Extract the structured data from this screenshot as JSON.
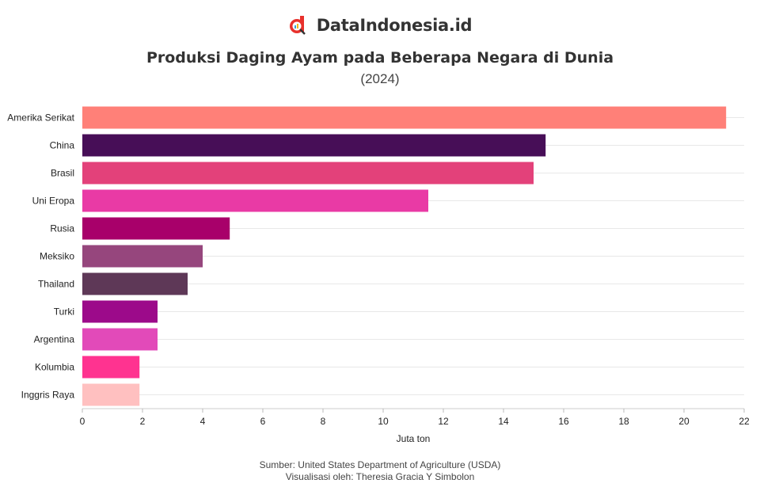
{
  "brand": {
    "logo_text": "DataIndonesia.id",
    "logo_color": "#e8312c"
  },
  "header": {
    "title": "Produksi Daging Ayam pada Beberapa Negara di Dunia",
    "subtitle": "(2024)"
  },
  "footer": {
    "source": "Sumber: United States Department of Agriculture (USDA)",
    "credit": "Visualisasi oleh: Theresia Gracia Y Simbolon"
  },
  "chart_data": {
    "type": "bar",
    "orientation": "horizontal",
    "categories": [
      "Amerika Serikat",
      "China",
      "Brasil",
      "Uni Eropa",
      "Rusia",
      "Meksiko",
      "Thailand",
      "Turki",
      "Argentina",
      "Kolumbia",
      "Inggris Raya"
    ],
    "values": [
      21.4,
      15.4,
      15.0,
      11.5,
      4.9,
      4.0,
      3.5,
      2.5,
      2.5,
      1.9,
      1.9
    ],
    "colors": [
      "#ff8078",
      "#470e57",
      "#e3417a",
      "#e93aa5",
      "#a8006a",
      "#96467d",
      "#5e3857",
      "#9c0a8a",
      "#e24ab9",
      "#ff3390",
      "#ffc0c0"
    ],
    "xlabel": "Juta ton",
    "ylabel": "",
    "xlim": [
      0,
      22
    ],
    "xticks": [
      0,
      2,
      4,
      6,
      8,
      10,
      12,
      14,
      16,
      18,
      20,
      22
    ],
    "grid": true
  }
}
